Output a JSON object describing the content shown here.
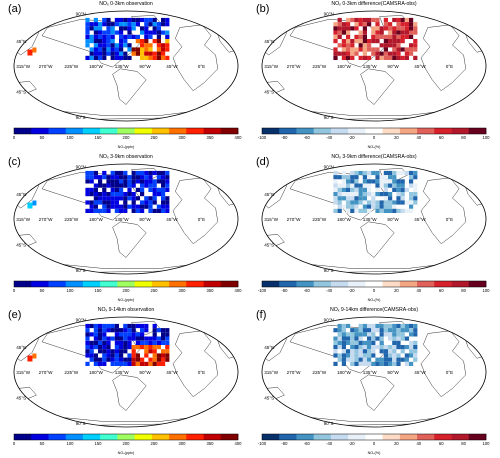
{
  "panels": [
    {
      "id": "a",
      "letter": "(a)",
      "title": "NOₓ 0-3km observation",
      "kind": "obs",
      "unit": "NOₓ(pptv)",
      "cells": [
        [
          0.72,
          -0.32
        ],
        [
          0.74,
          -0.28
        ],
        [
          0.78,
          -0.29
        ],
        [
          0.82,
          -0.34
        ],
        [
          0.68,
          -0.25
        ],
        [
          0.7,
          -0.2
        ],
        [
          0.66,
          -0.22
        ],
        [
          0.84,
          -0.3
        ],
        [
          0.86,
          -0.26
        ],
        [
          0.62,
          -0.18
        ],
        [
          -0.9,
          -0.28
        ],
        [
          -0.86,
          -0.3
        ],
        [
          0.55,
          -0.24
        ],
        [
          0.58,
          -0.3
        ]
      ]
    },
    {
      "id": "b",
      "letter": "(b)",
      "title": "NOₓ 0-3km difference(CAMSRA-obs)",
      "kind": "diff",
      "unit": "NOₓ(%)",
      "cells": []
    },
    {
      "id": "c",
      "letter": "(c)",
      "title": "NOₓ 3-9km observation",
      "kind": "obs",
      "unit": "NOₓ(pptv)",
      "cells": []
    },
    {
      "id": "d",
      "letter": "(d)",
      "title": "NOₓ 3-9km difference(CAMSRA-obs)",
      "kind": "diff",
      "unit": "NOₓ(%)",
      "cells": []
    },
    {
      "id": "e",
      "letter": "(e)",
      "title": "NOₓ 9-14km observation",
      "kind": "obs",
      "unit": "NOₓ(pptv)",
      "cells": []
    },
    {
      "id": "f",
      "letter": "(f)",
      "title": "NOₓ 9-14km difference(CAMSRA-obs)",
      "kind": "diff",
      "unit": "NOₓ(%)",
      "cells": []
    }
  ],
  "map_labels": {
    "lon": [
      "315°W",
      "270°W",
      "225°W",
      "180°W",
      "135°W",
      "90°W",
      "45°W",
      "0°E"
    ],
    "lat": [
      "90°N",
      "45°N",
      "45°S",
      "90°S"
    ]
  },
  "obs_ticks": {
    "ac": [
      "0",
      "50",
      "100",
      "150",
      "200",
      "250",
      "300",
      "350",
      "400"
    ],
    "e": [
      "0",
      "50",
      "100",
      "150",
      "200",
      "250",
      "300",
      "350",
      "400"
    ]
  },
  "diff_ticks": [
    "-100",
    "-80",
    "-60",
    "-40",
    "-20",
    "0",
    "20",
    "40",
    "60",
    "80",
    "100"
  ],
  "colors": {
    "obs_scale": [
      "#00008b",
      "#0000e0",
      "#0040ff",
      "#0090ff",
      "#00d0ff",
      "#40ffd0",
      "#a0ff60",
      "#f0ff00",
      "#ffc000",
      "#ff7000",
      "#ff2000",
      "#c00000",
      "#800000"
    ],
    "diff_scale": [
      "#08306b",
      "#2166ac",
      "#4393c3",
      "#92c5de",
      "#c6dbef",
      "#e8f0f8",
      "#ffffff",
      "#fddbc7",
      "#f4a582",
      "#e0605a",
      "#d6202c",
      "#b2182b",
      "#67001f"
    ]
  }
}
